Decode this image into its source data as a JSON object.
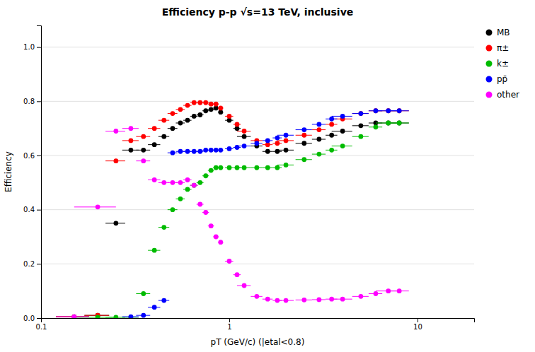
{
  "chart_data": {
    "type": "scatter",
    "title": "Efficiency p-p √s=13 TeV, inclusive",
    "xlabel": "pT (GeV/c) (|etal<0.8)",
    "ylabel": "Efficiency",
    "log": "x",
    "xlim": [
      0.1,
      20
    ],
    "ylim": [
      0.0,
      1.08
    ],
    "xticks": [
      0.1,
      1,
      10
    ],
    "yticks": [
      {
        "value": 0,
        "label": "0.0"
      },
      0.2,
      0.4,
      0.6,
      0.8,
      {
        "value": 1.0,
        "label": "1.0"
      }
    ],
    "grid": true,
    "legend": "right",
    "marker": "circle",
    "series": [
      {
        "name": "MB",
        "color": "black",
        "x": [
          0.15,
          0.2,
          0.25,
          0.3,
          0.35,
          0.4,
          0.45,
          0.5,
          0.55,
          0.6,
          0.65,
          0.7,
          0.75,
          0.8,
          0.85,
          0.9,
          1.0,
          1.1,
          1.2,
          1.4,
          1.6,
          1.8,
          2.0,
          2.5,
          3.0,
          3.5,
          4.0,
          5.0,
          6.0,
          7.0,
          8.0
        ],
        "values": [
          0.005,
          0.01,
          0.35,
          0.62,
          0.62,
          0.64,
          0.67,
          0.7,
          0.72,
          0.73,
          0.745,
          0.75,
          0.765,
          0.77,
          0.775,
          0.76,
          0.73,
          0.7,
          0.67,
          0.635,
          0.615,
          0.615,
          0.62,
          0.645,
          0.66,
          0.675,
          0.69,
          0.71,
          0.72,
          0.72,
          0.72
        ],
        "xerr": [
          0.03,
          0.03,
          0.03,
          0.03,
          0.03,
          0.03,
          0.03,
          0.03,
          0.03,
          0.03,
          0.03,
          0.03,
          0.03,
          0.03,
          0.03,
          0.03,
          0.05,
          0.05,
          0.1,
          0.1,
          0.1,
          0.1,
          0.2,
          0.25,
          0.25,
          0.25,
          0.5,
          0.5,
          0.5,
          1.0,
          1.0
        ],
        "yerr": [
          0.003,
          0.003,
          0.005,
          0.004,
          0.004,
          0.004,
          0.004,
          0.004,
          0.004,
          0.004,
          0.004,
          0.004,
          0.004,
          0.004,
          0.004,
          0.004,
          0.004,
          0.004,
          0.004,
          0.004,
          0.004,
          0.004,
          0.004,
          0.004,
          0.004,
          0.004,
          0.004,
          0.004,
          0.004,
          0.004,
          0.004
        ]
      },
      {
        "name": "π±",
        "color": "red",
        "x": [
          0.15,
          0.2,
          0.25,
          0.3,
          0.35,
          0.4,
          0.45,
          0.5,
          0.55,
          0.6,
          0.65,
          0.7,
          0.75,
          0.8,
          0.85,
          0.9,
          1.0,
          1.1,
          1.2,
          1.4,
          1.6,
          1.8,
          2.0,
          2.5,
          3.0,
          3.5,
          4.0,
          5.0,
          6.0,
          7.0,
          8.0
        ],
        "values": [
          0.005,
          0.01,
          0.58,
          0.655,
          0.67,
          0.7,
          0.73,
          0.755,
          0.77,
          0.785,
          0.795,
          0.795,
          0.795,
          0.79,
          0.79,
          0.775,
          0.745,
          0.715,
          0.69,
          0.655,
          0.64,
          0.645,
          0.655,
          0.675,
          0.695,
          0.715,
          0.735,
          0.755,
          0.765,
          0.765,
          0.765
        ],
        "xerr": [
          0.03,
          0.03,
          0.03,
          0.03,
          0.03,
          0.03,
          0.03,
          0.03,
          0.03,
          0.03,
          0.03,
          0.03,
          0.03,
          0.03,
          0.03,
          0.03,
          0.05,
          0.05,
          0.1,
          0.1,
          0.1,
          0.1,
          0.2,
          0.25,
          0.25,
          0.25,
          0.5,
          0.5,
          0.5,
          1.0,
          1.0
        ],
        "yerr": [
          0.003,
          0.003,
          0.004,
          0.004,
          0.004,
          0.004,
          0.004,
          0.004,
          0.004,
          0.004,
          0.004,
          0.004,
          0.004,
          0.004,
          0.004,
          0.004,
          0.004,
          0.004,
          0.004,
          0.004,
          0.004,
          0.004,
          0.004,
          0.004,
          0.004,
          0.004,
          0.004,
          0.004,
          0.004,
          0.004,
          0.004
        ]
      },
      {
        "name": "k±",
        "color": "#00bb00",
        "x": [
          0.2,
          0.25,
          0.3,
          0.35,
          0.4,
          0.45,
          0.5,
          0.55,
          0.6,
          0.65,
          0.7,
          0.75,
          0.8,
          0.85,
          0.9,
          1.0,
          1.1,
          1.2,
          1.4,
          1.6,
          1.8,
          2.0,
          2.5,
          3.0,
          3.5,
          4.0,
          5.0,
          6.0,
          7.0,
          8.0
        ],
        "values": [
          0.003,
          0.003,
          0.003,
          0.09,
          0.25,
          0.335,
          0.4,
          0.44,
          0.475,
          0.49,
          0.5,
          0.525,
          0.545,
          0.555,
          0.555,
          0.555,
          0.555,
          0.555,
          0.555,
          0.555,
          0.555,
          0.565,
          0.585,
          0.605,
          0.62,
          0.635,
          0.67,
          0.705,
          0.72,
          0.72
        ],
        "xerr": [
          0.05,
          0.03,
          0.03,
          0.03,
          0.03,
          0.03,
          0.03,
          0.03,
          0.03,
          0.03,
          0.03,
          0.03,
          0.03,
          0.03,
          0.03,
          0.05,
          0.05,
          0.1,
          0.1,
          0.1,
          0.1,
          0.2,
          0.25,
          0.25,
          0.25,
          0.5,
          0.5,
          0.5,
          1.0,
          1.0
        ],
        "yerr": [
          0.003,
          0.003,
          0.003,
          0.004,
          0.004,
          0.004,
          0.004,
          0.004,
          0.004,
          0.004,
          0.004,
          0.004,
          0.004,
          0.004,
          0.004,
          0.004,
          0.004,
          0.004,
          0.004,
          0.004,
          0.004,
          0.004,
          0.004,
          0.004,
          0.004,
          0.004,
          0.004,
          0.004,
          0.004,
          0.004
        ]
      },
      {
        "name": "pp̄",
        "color": "blue",
        "x": [
          0.3,
          0.35,
          0.4,
          0.45,
          0.5,
          0.55,
          0.6,
          0.65,
          0.7,
          0.75,
          0.8,
          0.85,
          0.9,
          1.0,
          1.1,
          1.2,
          1.4,
          1.6,
          1.8,
          2.0,
          2.5,
          3.0,
          3.5,
          4.0,
          5.0,
          6.0,
          7.0,
          8.0
        ],
        "values": [
          0.005,
          0.01,
          0.04,
          0.065,
          0.61,
          0.615,
          0.615,
          0.615,
          0.615,
          0.62,
          0.62,
          0.62,
          0.62,
          0.625,
          0.63,
          0.635,
          0.645,
          0.655,
          0.665,
          0.675,
          0.695,
          0.715,
          0.735,
          0.745,
          0.755,
          0.765,
          0.765,
          0.765
        ],
        "xerr": [
          0.03,
          0.03,
          0.03,
          0.03,
          0.03,
          0.03,
          0.03,
          0.03,
          0.03,
          0.03,
          0.03,
          0.03,
          0.03,
          0.05,
          0.05,
          0.1,
          0.1,
          0.1,
          0.1,
          0.2,
          0.25,
          0.25,
          0.25,
          0.5,
          0.5,
          0.5,
          1.0,
          1.0
        ],
        "yerr": [
          0.003,
          0.003,
          0.004,
          0.004,
          0.004,
          0.004,
          0.004,
          0.004,
          0.004,
          0.004,
          0.004,
          0.004,
          0.004,
          0.004,
          0.004,
          0.004,
          0.004,
          0.004,
          0.004,
          0.004,
          0.004,
          0.004,
          0.004,
          0.004,
          0.004,
          0.004,
          0.004,
          0.004
        ]
      },
      {
        "name": "other",
        "color": "#ff00ff",
        "x": [
          0.15,
          0.2,
          0.25,
          0.3,
          0.35,
          0.4,
          0.45,
          0.5,
          0.55,
          0.6,
          0.65,
          0.7,
          0.75,
          0.8,
          0.85,
          0.9,
          1.0,
          1.1,
          1.2,
          1.4,
          1.6,
          1.8,
          2.0,
          2.5,
          3.0,
          3.5,
          4.0,
          5.0,
          6.0,
          7.0,
          8.0
        ],
        "values": [
          0.005,
          0.41,
          0.69,
          0.7,
          0.58,
          0.51,
          0.5,
          0.5,
          0.5,
          0.51,
          0.49,
          0.42,
          0.39,
          0.34,
          0.3,
          0.28,
          0.21,
          0.16,
          0.12,
          0.08,
          0.07,
          0.065,
          0.065,
          0.067,
          0.068,
          0.07,
          0.07,
          0.08,
          0.09,
          0.1,
          0.1
        ],
        "xerr": [
          0.03,
          0.05,
          0.03,
          0.03,
          0.03,
          0.03,
          0.03,
          0.03,
          0.03,
          0.03,
          0.03,
          0.03,
          0.03,
          0.03,
          0.03,
          0.03,
          0.05,
          0.05,
          0.1,
          0.1,
          0.1,
          0.1,
          0.2,
          0.25,
          0.25,
          0.25,
          0.5,
          0.5,
          0.5,
          1.0,
          1.0
        ],
        "yerr": [
          0.003,
          0.005,
          0.005,
          0.005,
          0.005,
          0.005,
          0.005,
          0.005,
          0.005,
          0.005,
          0.005,
          0.005,
          0.005,
          0.005,
          0.005,
          0.005,
          0.005,
          0.005,
          0.005,
          0.005,
          0.005,
          0.005,
          0.005,
          0.005,
          0.005,
          0.005,
          0.005,
          0.005,
          0.005,
          0.005,
          0.005
        ]
      }
    ]
  }
}
